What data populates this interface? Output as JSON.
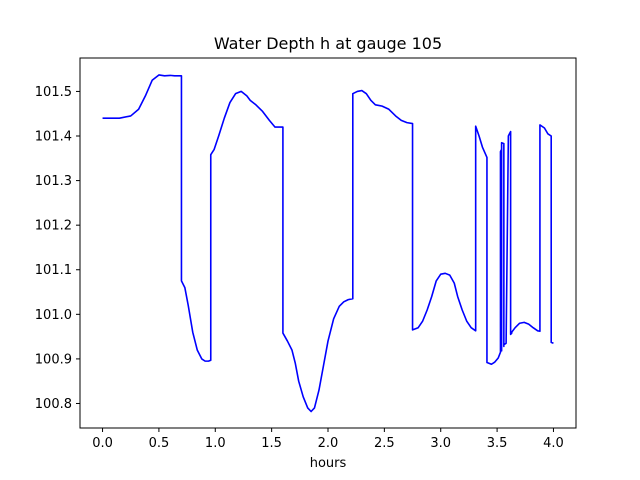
{
  "chart_data": {
    "type": "line",
    "title": "Water Depth h at gauge 105",
    "xlabel": "hours",
    "ylabel": "",
    "xlim": [
      -0.2,
      4.2
    ],
    "ylim": [
      100.745,
      101.575
    ],
    "xticks": [
      0.0,
      0.5,
      1.0,
      1.5,
      2.0,
      2.5,
      3.0,
      3.5,
      4.0
    ],
    "xtick_labels": [
      "0.0",
      "0.5",
      "1.0",
      "1.5",
      "2.0",
      "2.5",
      "3.0",
      "3.5",
      "4.0"
    ],
    "yticks": [
      100.8,
      100.9,
      101.0,
      101.1,
      101.2,
      101.3,
      101.4,
      101.5
    ],
    "ytick_labels": [
      "100.8",
      "100.9",
      "101.0",
      "101.1",
      "101.2",
      "101.3",
      "101.4",
      "101.5"
    ],
    "grid": false,
    "series": [
      {
        "color": "#0000ff",
        "x": [
          0.0,
          0.15,
          0.25,
          0.32,
          0.38,
          0.44,
          0.5,
          0.55,
          0.6,
          0.64,
          0.7,
          0.7,
          0.73,
          0.76,
          0.8,
          0.84,
          0.88,
          0.91,
          0.94,
          0.96,
          0.96,
          0.99,
          1.03,
          1.08,
          1.13,
          1.18,
          1.23,
          1.28,
          1.31,
          1.36,
          1.42,
          1.48,
          1.53,
          1.57,
          1.6,
          1.6,
          1.64,
          1.68,
          1.71,
          1.74,
          1.78,
          1.82,
          1.85,
          1.88,
          1.92,
          1.96,
          2.0,
          2.05,
          2.1,
          2.14,
          2.18,
          2.22,
          2.22,
          2.26,
          2.3,
          2.34,
          2.38,
          2.42,
          2.48,
          2.54,
          2.6,
          2.65,
          2.7,
          2.75,
          2.75,
          2.8,
          2.84,
          2.88,
          2.92,
          2.96,
          3.0,
          3.04,
          3.08,
          3.12,
          3.15,
          3.19,
          3.23,
          3.27,
          3.31,
          3.31,
          3.34,
          3.37,
          3.41,
          3.41,
          3.45,
          3.48,
          3.51,
          3.53,
          3.53,
          3.54,
          3.54,
          3.54,
          3.56,
          3.56,
          3.56,
          3.58,
          3.6,
          3.61,
          3.62,
          3.62,
          3.62,
          3.63,
          3.63,
          3.63,
          3.66,
          3.7,
          3.74,
          3.78,
          3.82,
          3.86,
          3.88,
          3.88,
          3.92,
          3.95,
          3.98,
          3.98,
          3.98,
          4.0
        ],
        "y": [
          101.44,
          101.44,
          101.445,
          101.46,
          101.49,
          101.525,
          101.537,
          101.535,
          101.536,
          101.535,
          101.535,
          101.075,
          101.06,
          101.02,
          100.96,
          100.92,
          100.9,
          100.895,
          100.895,
          100.897,
          101.358,
          101.37,
          101.4,
          101.44,
          101.475,
          101.495,
          101.5,
          101.49,
          101.48,
          101.47,
          101.455,
          101.435,
          101.42,
          101.42,
          101.42,
          100.958,
          100.94,
          100.92,
          100.89,
          100.85,
          100.815,
          100.79,
          100.782,
          100.79,
          100.83,
          100.885,
          100.94,
          100.99,
          101.018,
          101.028,
          101.033,
          101.035,
          101.495,
          101.5,
          101.502,
          101.495,
          101.48,
          101.47,
          101.467,
          101.46,
          101.445,
          101.435,
          101.43,
          101.428,
          100.965,
          100.97,
          100.985,
          101.01,
          101.04,
          101.075,
          101.09,
          101.092,
          101.088,
          101.07,
          101.04,
          101.01,
          100.985,
          100.97,
          100.963,
          101.422,
          101.4,
          101.375,
          101.352,
          100.892,
          100.888,
          100.893,
          100.902,
          100.915,
          101.365,
          101.37,
          100.918,
          101.385,
          101.383,
          100.928,
          100.932,
          100.935,
          101.4,
          101.405,
          101.41,
          100.955,
          100.955,
          100.958,
          100.96,
          100.96,
          100.97,
          100.98,
          100.982,
          100.978,
          100.97,
          100.963,
          100.962,
          101.425,
          101.418,
          101.405,
          101.4,
          101.4,
          100.937,
          100.935
        ]
      }
    ]
  }
}
